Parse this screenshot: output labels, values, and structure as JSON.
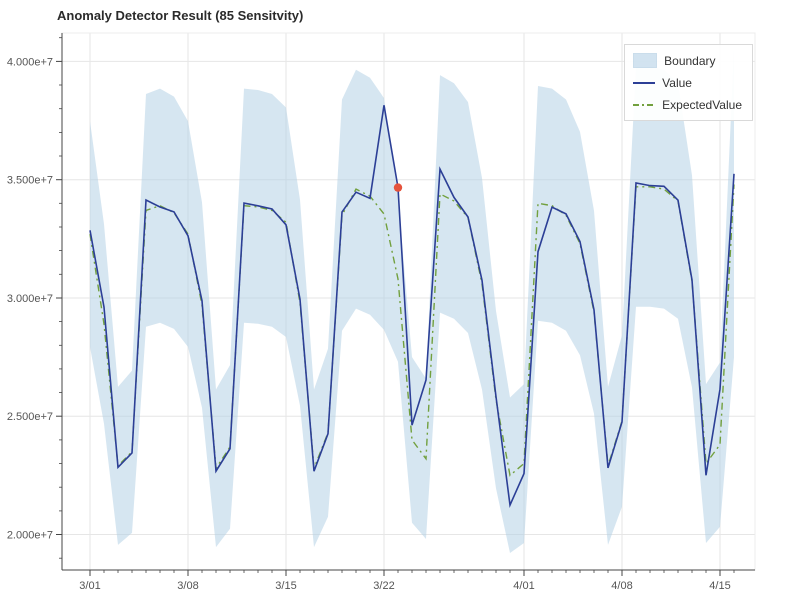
{
  "chart_data": {
    "type": "line",
    "title": "Anomaly Detector Result (85 Sensitvity)",
    "grid": true,
    "legend_position": "top_right",
    "x_axis": {
      "tick_labels": [
        "3/01",
        "3/08",
        "3/15",
        "3/22",
        "4/01",
        "4/08",
        "4/15"
      ],
      "tick_indices": [
        0,
        7,
        14,
        21,
        31,
        38,
        45
      ]
    },
    "y_axis": {
      "min": 18500000,
      "max": 41200000,
      "ticks": [
        20000000,
        25000000,
        30000000,
        35000000,
        40000000
      ],
      "tick_labels": [
        "2.000e+7",
        "2.500e+7",
        "3.000e+7",
        "3.500e+7",
        "4.000e+7"
      ]
    },
    "dates": [
      "3/01",
      "3/02",
      "3/03",
      "3/04",
      "3/05",
      "3/06",
      "3/07",
      "3/08",
      "3/09",
      "3/10",
      "3/11",
      "3/12",
      "3/13",
      "3/14",
      "3/15",
      "3/16",
      "3/17",
      "3/18",
      "3/19",
      "3/20",
      "3/21",
      "3/22",
      "3/23",
      "3/24",
      "3/25",
      "3/26",
      "3/27",
      "3/28",
      "3/29",
      "3/30",
      "3/31",
      "4/01",
      "4/02",
      "4/03",
      "4/04",
      "4/05",
      "4/06",
      "4/07",
      "4/08",
      "4/09",
      "4/10",
      "4/11",
      "4/12",
      "4/13",
      "4/14",
      "4/15",
      "4/16"
    ],
    "series": [
      {
        "name": "Value",
        "color": "#2c3f96",
        "values": [
          32858923,
          29615278,
          22839355,
          23448736,
          34139159,
          33843985,
          33637661,
          32627350,
          29881076,
          22681575,
          23629393,
          34010679,
          33893888,
          33760076,
          33093515,
          29945555,
          22676212,
          24262514,
          33631649,
          34468310,
          34212281,
          38144434,
          34662949,
          24623684,
          26530491,
          35445003,
          34250789,
          33423012,
          30744783,
          25825128,
          21244209,
          22576956,
          31957221,
          33841228,
          33554483,
          32383350,
          29494850,
          22815534,
          24757267,
          34858252,
          34750597,
          34717956,
          34132534,
          30762236,
          22504059,
          26149060,
          35250105
        ]
      },
      {
        "name": "ExpectedValue",
        "color": "#72a03e",
        "line_style": "dashdot",
        "values": [
          32700000,
          28900000,
          22900000,
          23500000,
          33700000,
          33900000,
          33600000,
          32700000,
          29700000,
          22800000,
          23700000,
          33900000,
          33850000,
          33700000,
          33200000,
          29800000,
          22800000,
          24300000,
          33500000,
          34600000,
          34300000,
          33550000,
          30800000,
          24000000,
          23200000,
          34400000,
          34100000,
          33400000,
          30600000,
          25700000,
          22500000,
          23000000,
          34000000,
          33900000,
          33500000,
          32300000,
          29400000,
          22900000,
          24800000,
          34700000,
          34700000,
          34600000,
          34100000,
          30700000,
          23000000,
          23800000,
          34800000
        ]
      }
    ],
    "boundary": {
      "name": "Boundary",
      "color": "#aecde4",
      "upper": [
        37470000,
        33120000,
        26240000,
        26930000,
        38620000,
        38850000,
        38510000,
        37470000,
        34040000,
        26130000,
        27160000,
        38850000,
        38790000,
        38620000,
        38050000,
        34150000,
        26130000,
        27850000,
        38390000,
        39650000,
        39310000,
        38450000,
        34300000,
        27500000,
        26590000,
        39420000,
        39080000,
        38280000,
        35070000,
        29450000,
        25790000,
        26360000,
        38960000,
        38850000,
        38390000,
        37020000,
        33690000,
        26240000,
        28420000,
        39770000,
        39770000,
        39650000,
        39080000,
        35180000,
        26360000,
        27270000,
        40600000
      ],
      "lower": [
        27930000,
        24680000,
        19560000,
        20070000,
        28780000,
        28950000,
        28690000,
        27930000,
        25360000,
        19470000,
        20240000,
        28950000,
        28910000,
        28780000,
        28350000,
        25450000,
        19470000,
        20750000,
        28610000,
        29550000,
        29290000,
        28650000,
        27300000,
        20500000,
        19810000,
        29380000,
        29120000,
        28520000,
        26130000,
        21950000,
        19220000,
        19640000,
        29040000,
        28950000,
        28610000,
        27580000,
        25110000,
        19560000,
        21180000,
        29630000,
        29630000,
        29550000,
        29120000,
        26220000,
        19640000,
        20330000,
        27500000
      ]
    },
    "anomalies": [
      {
        "date": "3/23",
        "index": 22,
        "value": 34662949,
        "color": "#e5533c"
      }
    ],
    "legend": [
      {
        "label": "Boundary",
        "swatch": "area"
      },
      {
        "label": "Value",
        "swatch": "line"
      },
      {
        "label": "ExpectedValue",
        "swatch": "dashdot"
      }
    ]
  }
}
